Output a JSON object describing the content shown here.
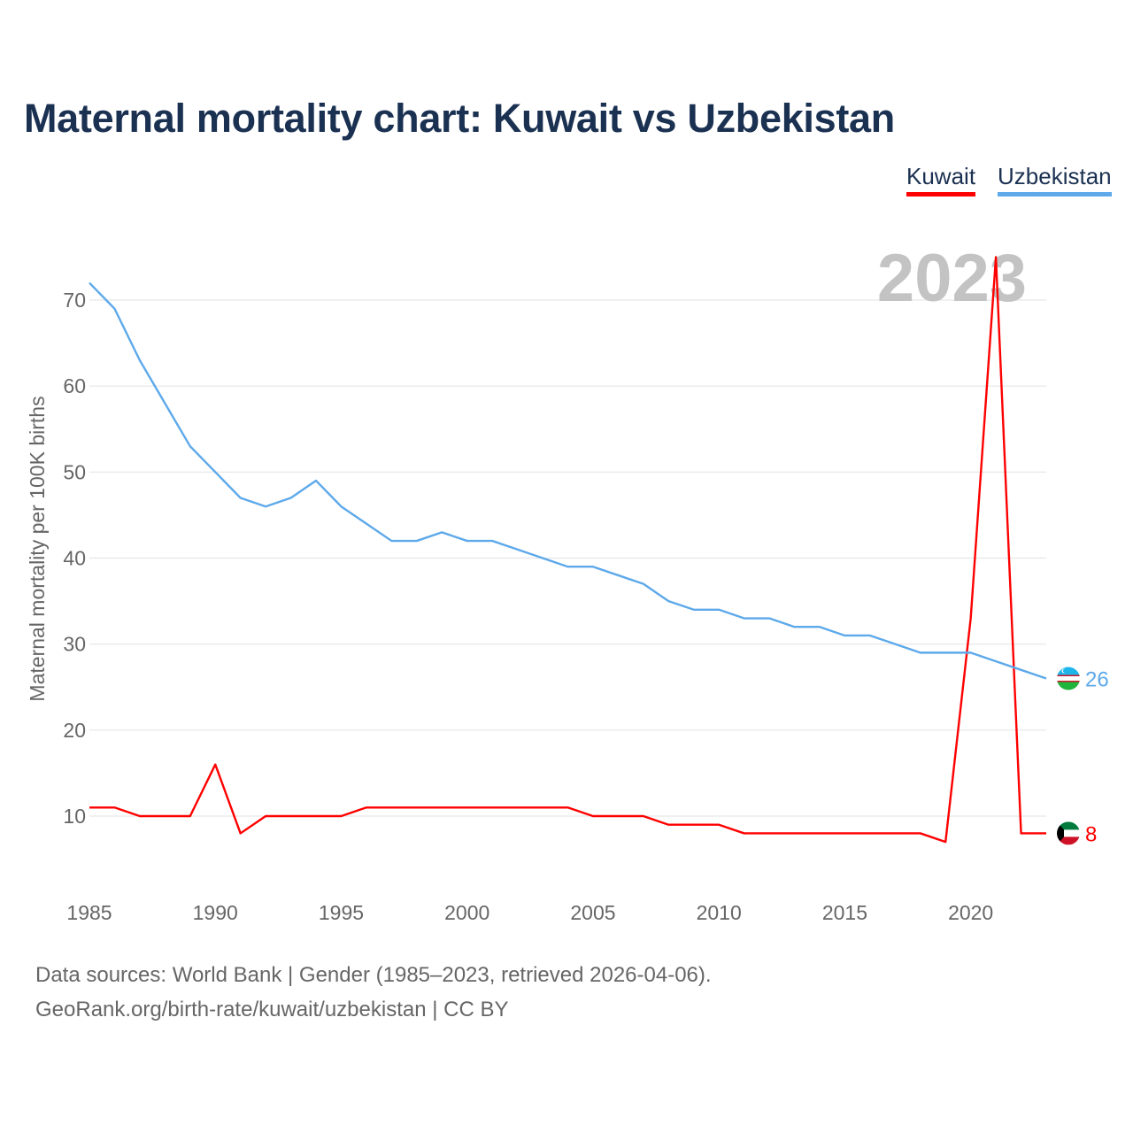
{
  "title": "Maternal mortality chart: Kuwait vs Uzbekistan",
  "legend": {
    "kuwait": "Kuwait",
    "uzbekistan": "Uzbekistan"
  },
  "colors": {
    "kuwait": "#ff0000",
    "uzbekistan": "#5da9ea",
    "title": "#1b3152",
    "grid": "#e6e6e6",
    "axis_text": "#666666"
  },
  "footer": {
    "source_line": "Data sources: World Bank | Gender (1985–2023, retrieved 2026-04-06).",
    "credit_line": "GeoRank.org/birth-rate/kuwait/uzbekistan | CC BY"
  },
  "chart_data": {
    "type": "line",
    "title": "Maternal mortality chart: Kuwait vs Uzbekistan",
    "ylabel": "Maternal mortality per 100K births",
    "xlabel": "",
    "year_overlay": "2023",
    "x": [
      1985,
      1986,
      1987,
      1988,
      1989,
      1990,
      1991,
      1992,
      1993,
      1994,
      1995,
      1996,
      1997,
      1998,
      1999,
      2000,
      2001,
      2002,
      2003,
      2004,
      2005,
      2006,
      2007,
      2008,
      2009,
      2010,
      2011,
      2012,
      2013,
      2014,
      2015,
      2016,
      2017,
      2018,
      2019,
      2020,
      2021,
      2022,
      2023
    ],
    "xlim": [
      1985,
      2023
    ],
    "ylim": [
      0,
      75
    ],
    "xticks": [
      1985,
      1990,
      1995,
      2000,
      2005,
      2010,
      2015,
      2020
    ],
    "yticks": [
      10,
      20,
      30,
      40,
      50,
      60,
      70
    ],
    "series": [
      {
        "name": "Kuwait",
        "key": "kuwait",
        "end_label": "8",
        "values": [
          11,
          11,
          10,
          10,
          10,
          16,
          8,
          10,
          10,
          10,
          10,
          11,
          11,
          11,
          11,
          11,
          11,
          11,
          11,
          11,
          10,
          10,
          10,
          9,
          9,
          9,
          8,
          8,
          8,
          8,
          8,
          8,
          8,
          8,
          7,
          33,
          75,
          8,
          8
        ]
      },
      {
        "name": "Uzbekistan",
        "key": "uzbekistan",
        "end_label": "26",
        "values": [
          72,
          69,
          63,
          58,
          53,
          50,
          47,
          46,
          47,
          49,
          46,
          44,
          42,
          42,
          43,
          42,
          42,
          41,
          40,
          39,
          39,
          38,
          37,
          35,
          34,
          34,
          33,
          33,
          32,
          32,
          31,
          31,
          30,
          29,
          29,
          29,
          28,
          27,
          26
        ]
      }
    ],
    "legend_position": "top-right",
    "grid": true
  }
}
